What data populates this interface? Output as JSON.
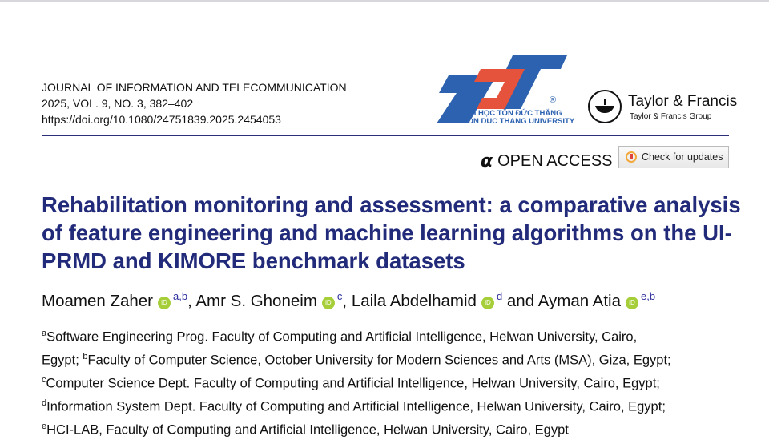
{
  "journal": {
    "name": "JOURNAL OF INFORMATION AND TELECOMMUNICATION",
    "issue": "2025, VOL. 9, NO. 3, 382–402",
    "doi": "https://doi.org/10.1080/24751839.2025.2454053"
  },
  "logos": {
    "university_line1": "ĐẠI HỌC TÔN ĐỨC THẮNG",
    "university_line2": "TON DUC THANG UNIVERSITY",
    "registered": "®",
    "publisher": "Taylor & Francis",
    "publisher_group": "Taylor & Francis Group"
  },
  "open_access": "OPEN ACCESS",
  "check_updates": "Check for updates",
  "title": "Rehabilitation monitoring and assessment: a comparative analysis of feature engineering and machine learning algorithms on the UI-PRMD and KIMORE benchmark datasets",
  "authors": [
    {
      "name": "Moamen Zaher",
      "aff": "a,b",
      "sep": ","
    },
    {
      "name": "Amr S. Ghoneim",
      "aff": "c",
      "sep": ","
    },
    {
      "name": "Laila Abdelhamid",
      "aff": "d",
      "sep": " and"
    },
    {
      "name": "Ayman Atia",
      "aff": "e,b",
      "sep": ""
    }
  ],
  "affiliations": [
    {
      "mark": "a",
      "text": "Software Engineering Prog. Faculty of Computing and Artificial Intelligence, Helwan University, Cairo,"
    },
    {
      "pre": "Egypt; ",
      "mark": "b",
      "text": "Faculty of Computer Science, October University for Modern Sciences and Arts (MSA), Giza, Egypt;"
    },
    {
      "mark": "c",
      "text": "Computer Science Dept. Faculty of Computing and Artificial Intelligence, Helwan University, Cairo, Egypt;"
    },
    {
      "mark": "d",
      "text": "Information System Dept. Faculty of Computing and Artificial Intelligence, Helwan University, Cairo, Egypt;"
    },
    {
      "mark": "e",
      "text": "HCI-LAB, Faculty of Computing and Artificial Intelligence, Helwan University, Cairo, Egypt"
    }
  ],
  "orcid_label": "iD",
  "colors": {
    "title": "#222a7a",
    "rule": "#2b2f7a",
    "tdt_blue": "#2c62b0",
    "tdt_red": "#e5533d",
    "orcid": "#a6ce39"
  }
}
